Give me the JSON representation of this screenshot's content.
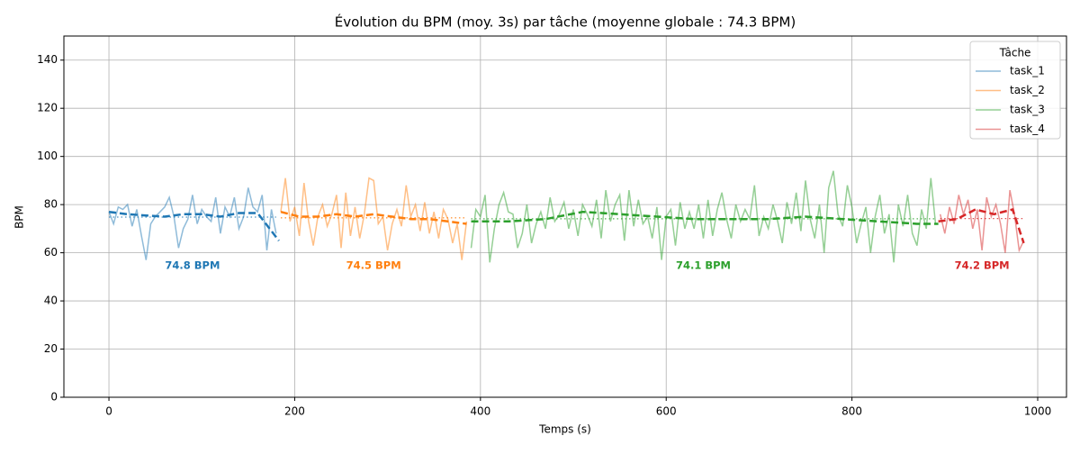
{
  "chart_data": {
    "type": "line",
    "title": "Évolution du BPM (moy. 3s) par tâche (moyenne globale : 74.3 BPM)",
    "x_label": "Temps (s)",
    "y_label": "BPM",
    "legend_title": "Tâche",
    "legend": "upper right",
    "grid": true,
    "xlim": [
      -48.5,
      1031
    ],
    "ylim": [
      0,
      150
    ],
    "xticks": [
      0,
      200,
      400,
      600,
      800,
      1000
    ],
    "yticks": [
      0,
      20,
      40,
      60,
      80,
      100,
      120,
      140
    ],
    "series": [
      {
        "name": "task_1",
        "color": "#1f77b4",
        "mean": 74.8,
        "mean_label": "74.8 BPM",
        "x": [
          0,
          5,
          10,
          15,
          20,
          25,
          30,
          35,
          40,
          45,
          50,
          55,
          60,
          65,
          70,
          75,
          80,
          85,
          90,
          95,
          100,
          105,
          110,
          115,
          120,
          125,
          130,
          135,
          140,
          145,
          150,
          155,
          160,
          165,
          170,
          175,
          180
        ],
        "values": [
          77,
          72,
          79,
          78,
          80,
          71,
          78,
          67,
          57,
          72,
          75,
          77,
          79,
          83,
          75,
          62,
          70,
          74,
          84,
          72,
          78,
          75,
          73,
          83,
          68,
          79,
          75,
          83,
          70,
          75,
          87,
          79,
          77,
          84,
          61,
          78,
          68
        ],
        "smooth_x": [
          0,
          20,
          40,
          60,
          80,
          100,
          120,
          140,
          160,
          183
        ],
        "smooth_values": [
          77,
          76,
          75.5,
          75,
          76,
          76,
          75,
          76.5,
          76.5,
          65
        ]
      },
      {
        "name": "task_2",
        "color": "#ff7f0e",
        "mean": 74.5,
        "mean_label": "74.5 BPM",
        "x": [
          185,
          190,
          195,
          200,
          205,
          210,
          215,
          220,
          225,
          230,
          235,
          240,
          245,
          250,
          255,
          260,
          265,
          270,
          275,
          280,
          285,
          290,
          295,
          300,
          305,
          310,
          315,
          320,
          325,
          330,
          335,
          340,
          345,
          350,
          355,
          360,
          365,
          370,
          375,
          380,
          385
        ],
        "values": [
          77,
          91,
          73,
          79,
          67,
          89,
          73,
          63,
          75,
          80,
          71,
          76,
          84,
          62,
          85,
          67,
          79,
          66,
          76,
          91,
          90,
          72,
          75,
          61,
          72,
          78,
          71,
          88,
          75,
          80,
          69,
          81,
          68,
          77,
          66,
          78,
          74,
          64,
          72,
          57,
          73
        ],
        "smooth_x": [
          185,
          205,
          225,
          245,
          265,
          285,
          305,
          325,
          345,
          365,
          385
        ],
        "smooth_values": [
          77,
          75,
          75,
          76,
          75,
          76,
          75,
          74,
          74,
          73,
          72
        ]
      },
      {
        "name": "task_3",
        "color": "#2ca02c",
        "mean": 74.1,
        "mean_label": "74.1 BPM",
        "x": [
          390,
          395,
          400,
          405,
          410,
          415,
          420,
          425,
          430,
          435,
          440,
          445,
          450,
          455,
          460,
          465,
          470,
          475,
          480,
          485,
          490,
          495,
          500,
          505,
          510,
          515,
          520,
          525,
          530,
          535,
          540,
          545,
          550,
          555,
          560,
          565,
          570,
          575,
          580,
          585,
          590,
          595,
          600,
          605,
          610,
          615,
          620,
          625,
          630,
          635,
          640,
          645,
          650,
          655,
          660,
          665,
          670,
          675,
          680,
          685,
          690,
          695,
          700,
          705,
          710,
          715,
          720,
          725,
          730,
          735,
          740,
          745,
          750,
          755,
          760,
          765,
          770,
          775,
          780,
          785,
          790,
          795,
          800,
          805,
          810,
          815,
          820,
          825,
          830,
          835,
          840,
          845,
          850,
          855,
          860,
          865,
          870,
          875,
          880,
          885,
          890
        ],
        "values": [
          62,
          78,
          75,
          84,
          56,
          70,
          80,
          85,
          77,
          76,
          62,
          68,
          80,
          64,
          72,
          77,
          70,
          83,
          73,
          76,
          81,
          70,
          78,
          67,
          80,
          76,
          71,
          82,
          66,
          86,
          73,
          80,
          84,
          65,
          86,
          71,
          82,
          72,
          75,
          66,
          79,
          57,
          75,
          78,
          63,
          81,
          70,
          77,
          70,
          80,
          66,
          82,
          67,
          78,
          85,
          74,
          66,
          80,
          73,
          78,
          74,
          88,
          67,
          75,
          70,
          80,
          73,
          64,
          81,
          72,
          85,
          69,
          90,
          74,
          66,
          80,
          60,
          87,
          94,
          76,
          71,
          88,
          79,
          64,
          72,
          79,
          60,
          75,
          84,
          68,
          76,
          56,
          80,
          71,
          84,
          68,
          63,
          78,
          70,
          91,
          72
        ],
        "smooth_x": [
          390,
          430,
          470,
          510,
          550,
          590,
          630,
          670,
          710,
          750,
          790,
          830,
          870,
          893
        ],
        "smooth_values": [
          73,
          73,
          74,
          77,
          76,
          75,
          74,
          74,
          74,
          75,
          74,
          73,
          72,
          72
        ]
      },
      {
        "name": "task_4",
        "color": "#d62728",
        "mean": 74.2,
        "mean_label": "74.2 BPM",
        "x": [
          895,
          900,
          905,
          910,
          915,
          920,
          925,
          930,
          935,
          940,
          945,
          950,
          955,
          960,
          965,
          970,
          975,
          980,
          985
        ],
        "values": [
          76,
          68,
          79,
          72,
          84,
          76,
          82,
          70,
          78,
          61,
          83,
          75,
          80,
          72,
          60,
          86,
          76,
          61,
          65
        ],
        "smooth_x": [
          893,
          913,
          933,
          953,
          973,
          985
        ],
        "smooth_values": [
          73,
          74,
          78,
          76,
          78,
          64
        ]
      }
    ]
  }
}
